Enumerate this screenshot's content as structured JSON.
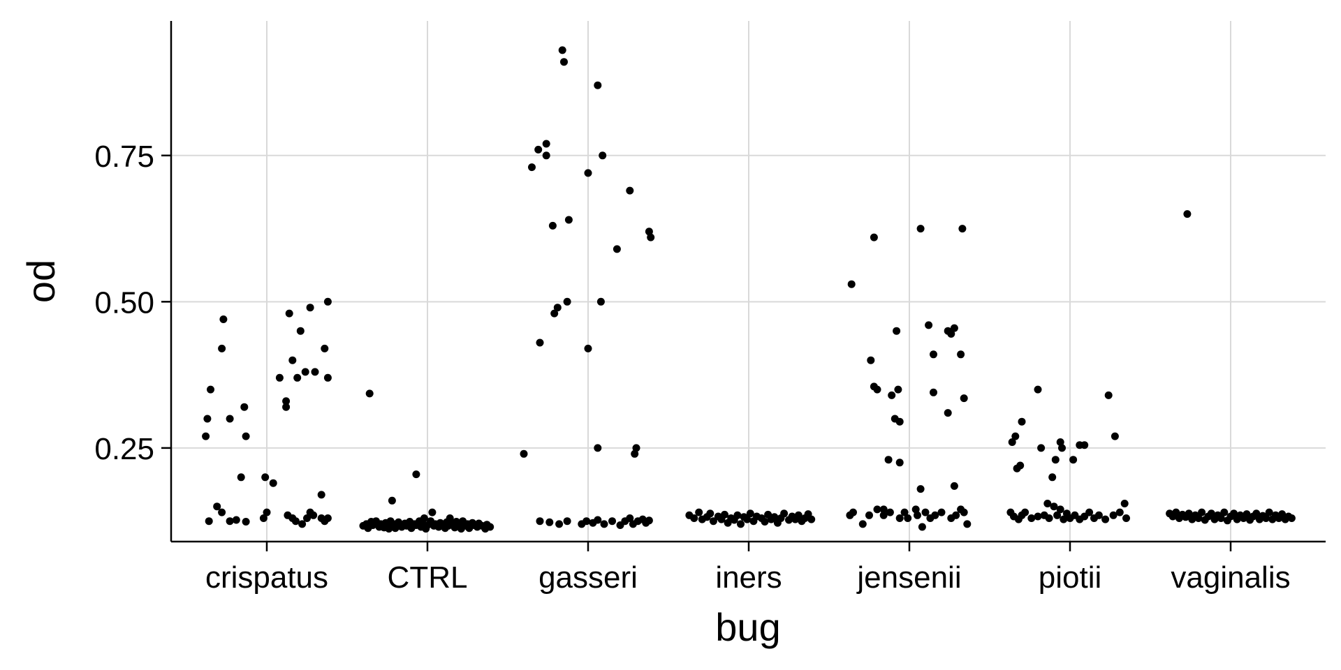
{
  "chart_data": {
    "type": "scatter",
    "xlabel": "bug",
    "ylabel": "od",
    "categories": [
      "crispatus",
      "CTRL",
      "gasseri",
      "iners",
      "jensenii",
      "piotii",
      "vaginalis"
    ],
    "ylim": [
      0.09,
      0.98
    ],
    "yticks": [
      0.25,
      0.5,
      0.75
    ],
    "ytick_labels": [
      "0.25",
      "0.50",
      "0.75"
    ],
    "grid": true,
    "colors": {
      "points": "#000000",
      "grid": "#d9d9d9",
      "axis": "#000000"
    },
    "points": {
      "crispatus": [
        [
          -0.38,
          0.27
        ],
        [
          -0.37,
          0.3
        ],
        [
          -0.35,
          0.35
        ],
        [
          -0.28,
          0.42
        ],
        [
          -0.27,
          0.47
        ],
        [
          -0.23,
          0.3
        ],
        [
          -0.14,
          0.32
        ],
        [
          -0.13,
          0.27
        ],
        [
          -0.16,
          0.2
        ],
        [
          -0.01,
          0.2
        ],
        [
          0.04,
          0.19
        ],
        [
          0.08,
          0.37
        ],
        [
          0.12,
          0.32
        ],
        [
          0.12,
          0.33
        ],
        [
          0.14,
          0.48
        ],
        [
          0.16,
          0.4
        ],
        [
          0.19,
          0.37
        ],
        [
          0.21,
          0.45
        ],
        [
          0.24,
          0.38
        ],
        [
          0.27,
          0.49
        ],
        [
          0.3,
          0.38
        ],
        [
          0.34,
          0.17
        ],
        [
          0.36,
          0.42
        ],
        [
          0.38,
          0.37
        ],
        [
          0.38,
          0.5
        ],
        [
          -0.36,
          0.125
        ],
        [
          -0.31,
          0.15
        ],
        [
          -0.28,
          0.14
        ],
        [
          -0.23,
          0.125
        ],
        [
          -0.19,
          0.127
        ],
        [
          -0.13,
          0.124
        ],
        [
          -0.02,
          0.13
        ],
        [
          0.0,
          0.14
        ],
        [
          0.13,
          0.135
        ],
        [
          0.16,
          0.13
        ],
        [
          0.18,
          0.125
        ],
        [
          0.22,
          0.12
        ],
        [
          0.25,
          0.13
        ],
        [
          0.27,
          0.14
        ],
        [
          0.29,
          0.135
        ],
        [
          0.34,
          0.13
        ],
        [
          0.36,
          0.125
        ],
        [
          0.38,
          0.13
        ]
      ],
      "CTRL": [
        [
          -0.36,
          0.343
        ],
        [
          -0.22,
          0.16
        ],
        [
          -0.07,
          0.205
        ],
        [
          -0.4,
          0.117
        ],
        [
          -0.38,
          0.12
        ],
        [
          -0.37,
          0.113
        ],
        [
          -0.35,
          0.124
        ],
        [
          -0.34,
          0.118
        ],
        [
          -0.32,
          0.125
        ],
        [
          -0.3,
          0.115
        ],
        [
          -0.29,
          0.12
        ],
        [
          -0.27,
          0.114
        ],
        [
          -0.26,
          0.122
        ],
        [
          -0.25,
          0.118
        ],
        [
          -0.24,
          0.112
        ],
        [
          -0.23,
          0.125
        ],
        [
          -0.22,
          0.117
        ],
        [
          -0.21,
          0.12
        ],
        [
          -0.2,
          0.113
        ],
        [
          -0.18,
          0.123
        ],
        [
          -0.17,
          0.118
        ],
        [
          -0.16,
          0.115
        ],
        [
          -0.14,
          0.121
        ],
        [
          -0.13,
          0.117
        ],
        [
          -0.11,
          0.124
        ],
        [
          -0.1,
          0.113
        ],
        [
          -0.08,
          0.12
        ],
        [
          -0.07,
          0.118
        ],
        [
          -0.05,
          0.125
        ],
        [
          -0.04,
          0.115
        ],
        [
          -0.03,
          0.12
        ],
        [
          -0.02,
          0.13
        ],
        [
          -0.01,
          0.112
        ],
        [
          0.0,
          0.118
        ],
        [
          0.02,
          0.125
        ],
        [
          0.03,
          0.14
        ],
        [
          0.04,
          0.117
        ],
        [
          0.05,
          0.12
        ],
        [
          0.07,
          0.115
        ],
        [
          0.08,
          0.122
        ],
        [
          0.1,
          0.118
        ],
        [
          0.11,
          0.113
        ],
        [
          0.12,
          0.123
        ],
        [
          0.13,
          0.117
        ],
        [
          0.14,
          0.13
        ],
        [
          0.16,
          0.12
        ],
        [
          0.17,
          0.114
        ],
        [
          0.18,
          0.124
        ],
        [
          0.2,
          0.118
        ],
        [
          0.21,
          0.112
        ],
        [
          0.22,
          0.125
        ],
        [
          0.24,
          0.117
        ],
        [
          0.25,
          0.12
        ],
        [
          0.26,
          0.113
        ],
        [
          0.28,
          0.122
        ],
        [
          0.29,
          0.118
        ],
        [
          0.31,
          0.115
        ],
        [
          0.32,
          0.121
        ],
        [
          0.34,
          0.117
        ],
        [
          0.36,
          0.112
        ],
        [
          0.37,
          0.119
        ],
        [
          0.39,
          0.115
        ]
      ],
      "gasseri": [
        [
          -0.4,
          0.24
        ],
        [
          -0.35,
          0.73
        ],
        [
          -0.31,
          0.76
        ],
        [
          -0.3,
          0.43
        ],
        [
          -0.26,
          0.77
        ],
        [
          -0.26,
          0.75
        ],
        [
          -0.22,
          0.63
        ],
        [
          -0.21,
          0.48
        ],
        [
          -0.19,
          0.49
        ],
        [
          -0.16,
          0.93
        ],
        [
          -0.15,
          0.91
        ],
        [
          -0.13,
          0.5
        ],
        [
          -0.12,
          0.64
        ],
        [
          0.0,
          0.72
        ],
        [
          0.0,
          0.42
        ],
        [
          0.06,
          0.87
        ],
        [
          0.06,
          0.25
        ],
        [
          0.08,
          0.5
        ],
        [
          0.09,
          0.75
        ],
        [
          0.18,
          0.59
        ],
        [
          0.26,
          0.69
        ],
        [
          0.29,
          0.24
        ],
        [
          0.3,
          0.25
        ],
        [
          0.38,
          0.62
        ],
        [
          0.39,
          0.61
        ],
        [
          -0.3,
          0.125
        ],
        [
          -0.24,
          0.123
        ],
        [
          -0.18,
          0.12
        ],
        [
          -0.13,
          0.125
        ],
        [
          -0.04,
          0.12
        ],
        [
          -0.01,
          0.125
        ],
        [
          0.03,
          0.122
        ],
        [
          0.06,
          0.127
        ],
        [
          0.1,
          0.12
        ],
        [
          0.15,
          0.125
        ],
        [
          0.2,
          0.118
        ],
        [
          0.23,
          0.125
        ],
        [
          0.26,
          0.13
        ],
        [
          0.28,
          0.12
        ],
        [
          0.31,
          0.125
        ],
        [
          0.34,
          0.128
        ],
        [
          0.36,
          0.122
        ],
        [
          0.38,
          0.126
        ]
      ],
      "iners": [
        [
          -0.37,
          0.135
        ],
        [
          -0.34,
          0.13
        ],
        [
          -0.31,
          0.14
        ],
        [
          -0.29,
          0.128
        ],
        [
          -0.26,
          0.132
        ],
        [
          -0.24,
          0.138
        ],
        [
          -0.22,
          0.125
        ],
        [
          -0.19,
          0.133
        ],
        [
          -0.17,
          0.128
        ],
        [
          -0.15,
          0.136
        ],
        [
          -0.13,
          0.122
        ],
        [
          -0.11,
          0.13
        ],
        [
          -0.09,
          0.127
        ],
        [
          -0.07,
          0.135
        ],
        [
          -0.05,
          0.12
        ],
        [
          -0.03,
          0.132
        ],
        [
          -0.01,
          0.128
        ],
        [
          0.01,
          0.138
        ],
        [
          0.03,
          0.125
        ],
        [
          0.05,
          0.133
        ],
        [
          0.08,
          0.13
        ],
        [
          0.1,
          0.124
        ],
        [
          0.12,
          0.136
        ],
        [
          0.14,
          0.128
        ],
        [
          0.16,
          0.132
        ],
        [
          0.18,
          0.122
        ],
        [
          0.2,
          0.13
        ],
        [
          0.22,
          0.138
        ],
        [
          0.25,
          0.127
        ],
        [
          0.27,
          0.133
        ],
        [
          0.29,
          0.128
        ],
        [
          0.31,
          0.135
        ],
        [
          0.33,
          0.125
        ],
        [
          0.35,
          0.13
        ],
        [
          0.37,
          0.137
        ],
        [
          0.39,
          0.128
        ]
      ],
      "jensenii": [
        [
          -0.36,
          0.53
        ],
        [
          -0.22,
          0.61
        ],
        [
          -0.24,
          0.4
        ],
        [
          -0.22,
          0.355
        ],
        [
          -0.2,
          0.35
        ],
        [
          -0.11,
          0.34
        ],
        [
          -0.09,
          0.3
        ],
        [
          -0.08,
          0.45
        ],
        [
          -0.07,
          0.35
        ],
        [
          -0.06,
          0.295
        ],
        [
          -0.13,
          0.23
        ],
        [
          -0.06,
          0.225
        ],
        [
          0.07,
          0.625
        ],
        [
          0.07,
          0.18
        ],
        [
          0.12,
          0.46
        ],
        [
          0.15,
          0.41
        ],
        [
          0.15,
          0.345
        ],
        [
          0.24,
          0.31
        ],
        [
          0.24,
          0.45
        ],
        [
          0.26,
          0.445
        ],
        [
          0.28,
          0.455
        ],
        [
          0.28,
          0.185
        ],
        [
          0.32,
          0.41
        ],
        [
          0.33,
          0.625
        ],
        [
          0.34,
          0.335
        ],
        [
          -0.37,
          0.135
        ],
        [
          -0.35,
          0.14
        ],
        [
          -0.29,
          0.12
        ],
        [
          -0.25,
          0.135
        ],
        [
          -0.2,
          0.145
        ],
        [
          -0.16,
          0.145
        ],
        [
          -0.16,
          0.135
        ],
        [
          -0.12,
          0.14
        ],
        [
          -0.06,
          0.13
        ],
        [
          -0.03,
          0.14
        ],
        [
          -0.01,
          0.13
        ],
        [
          0.04,
          0.145
        ],
        [
          0.05,
          0.135
        ],
        [
          0.08,
          0.115
        ],
        [
          0.1,
          0.14
        ],
        [
          0.13,
          0.13
        ],
        [
          0.16,
          0.135
        ],
        [
          0.2,
          0.14
        ],
        [
          0.26,
          0.13
        ],
        [
          0.29,
          0.135
        ],
        [
          0.32,
          0.145
        ],
        [
          0.34,
          0.14
        ],
        [
          0.36,
          0.12
        ]
      ],
      "piotii": [
        [
          -0.36,
          0.26
        ],
        [
          -0.34,
          0.27
        ],
        [
          -0.33,
          0.215
        ],
        [
          -0.31,
          0.22
        ],
        [
          -0.3,
          0.295
        ],
        [
          -0.2,
          0.35
        ],
        [
          -0.18,
          0.25
        ],
        [
          -0.11,
          0.2
        ],
        [
          -0.09,
          0.23
        ],
        [
          -0.06,
          0.26
        ],
        [
          -0.05,
          0.25
        ],
        [
          0.02,
          0.23
        ],
        [
          0.06,
          0.255
        ],
        [
          0.09,
          0.255
        ],
        [
          0.24,
          0.34
        ],
        [
          0.28,
          0.27
        ],
        [
          -0.37,
          0.14
        ],
        [
          -0.35,
          0.133
        ],
        [
          -0.32,
          0.128
        ],
        [
          -0.3,
          0.135
        ],
        [
          -0.28,
          0.14
        ],
        [
          -0.24,
          0.13
        ],
        [
          -0.2,
          0.133
        ],
        [
          -0.16,
          0.135
        ],
        [
          -0.14,
          0.155
        ],
        [
          -0.13,
          0.13
        ],
        [
          -0.1,
          0.15
        ],
        [
          -0.08,
          0.135
        ],
        [
          -0.06,
          0.145
        ],
        [
          -0.04,
          0.128
        ],
        [
          -0.02,
          0.138
        ],
        [
          0.0,
          0.13
        ],
        [
          0.03,
          0.135
        ],
        [
          0.06,
          0.128
        ],
        [
          0.09,
          0.133
        ],
        [
          0.12,
          0.14
        ],
        [
          0.15,
          0.13
        ],
        [
          0.18,
          0.135
        ],
        [
          0.22,
          0.128
        ],
        [
          0.27,
          0.135
        ],
        [
          0.31,
          0.14
        ],
        [
          0.34,
          0.155
        ],
        [
          0.35,
          0.13
        ]
      ],
      "vaginalis": [
        [
          -0.27,
          0.65
        ],
        [
          -0.38,
          0.138
        ],
        [
          -0.36,
          0.133
        ],
        [
          -0.34,
          0.14
        ],
        [
          -0.32,
          0.13
        ],
        [
          -0.3,
          0.136
        ],
        [
          -0.28,
          0.132
        ],
        [
          -0.26,
          0.138
        ],
        [
          -0.24,
          0.128
        ],
        [
          -0.22,
          0.135
        ],
        [
          -0.2,
          0.13
        ],
        [
          -0.18,
          0.14
        ],
        [
          -0.16,
          0.127
        ],
        [
          -0.14,
          0.133
        ],
        [
          -0.12,
          0.138
        ],
        [
          -0.1,
          0.128
        ],
        [
          -0.08,
          0.135
        ],
        [
          -0.06,
          0.13
        ],
        [
          -0.04,
          0.14
        ],
        [
          -0.02,
          0.126
        ],
        [
          0.0,
          0.133
        ],
        [
          0.02,
          0.138
        ],
        [
          0.04,
          0.128
        ],
        [
          0.06,
          0.135
        ],
        [
          0.08,
          0.13
        ],
        [
          0.1,
          0.137
        ],
        [
          0.12,
          0.127
        ],
        [
          0.14,
          0.133
        ],
        [
          0.16,
          0.138
        ],
        [
          0.18,
          0.128
        ],
        [
          0.2,
          0.134
        ],
        [
          0.22,
          0.13
        ],
        [
          0.24,
          0.14
        ],
        [
          0.26,
          0.128
        ],
        [
          0.28,
          0.135
        ],
        [
          0.3,
          0.13
        ],
        [
          0.32,
          0.137
        ],
        [
          0.34,
          0.128
        ],
        [
          0.36,
          0.133
        ],
        [
          0.38,
          0.13
        ]
      ]
    }
  }
}
